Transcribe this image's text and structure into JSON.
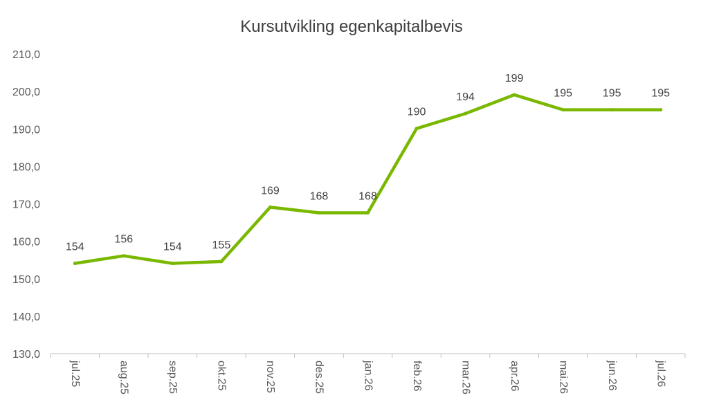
{
  "chart_data": {
    "type": "line",
    "title": "Kursutvikling egenkapitalbevis",
    "xlabel": "",
    "ylabel": "",
    "categories": [
      "jul.25",
      "aug.25",
      "sep.25",
      "okt.25",
      "nov.25",
      "des.25",
      "jan.26",
      "feb.26",
      "mar.26",
      "apr.26",
      "mai.26",
      "jun.26",
      "jul.26"
    ],
    "y_ticks": [
      "130,0",
      "140,0",
      "150,0",
      "160,0",
      "170,0",
      "180,0",
      "190,0",
      "200,0",
      "210,0"
    ],
    "ylim": [
      130,
      210
    ],
    "grid": false,
    "legend": "none",
    "series": [
      {
        "values": [
          154.1,
          156.1,
          154.1,
          154.6,
          169.1,
          167.6,
          167.6,
          190.1,
          194.1,
          199.1,
          195.1,
          195.1,
          195.1
        ],
        "labels": [
          "154",
          "156",
          "154",
          "155",
          "169",
          "168",
          "168",
          "190",
          "194",
          "199",
          "195",
          "195",
          "195"
        ],
        "color": "#7ab800"
      }
    ],
    "axis_color": "#bfbfbf"
  }
}
